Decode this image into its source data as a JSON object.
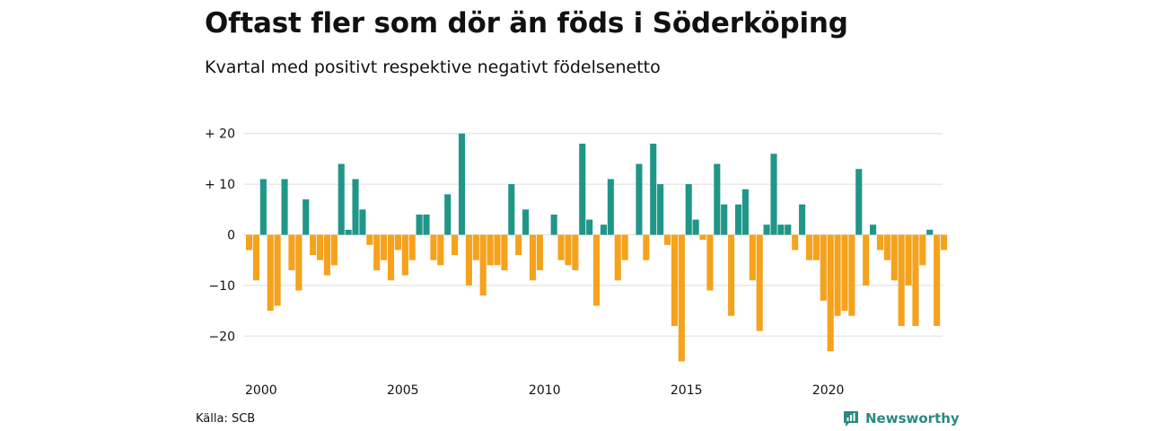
{
  "header": {
    "title": "Oftast fler som dör än föds i Söderköping",
    "subtitle": "Kvartal med positivt respektive negativt födelsenetto"
  },
  "footer": {
    "source": "Källa: SCB",
    "brand": "Newsworthy"
  },
  "colors": {
    "positive": "#1f9688",
    "negative": "#f5a21c",
    "grid": "#dddddd",
    "brand": "#2a8a80"
  },
  "icons": {
    "brand_logo": "newsworthy-logo-icon"
  },
  "chart_data": {
    "type": "bar",
    "title": "Oftast fler som dör än föds i Söderköping",
    "subtitle": "Kvartal med positivt respektive negativt födelsenetto",
    "xlabel": "",
    "ylabel": "",
    "ylim": [
      -25,
      20
    ],
    "grid": true,
    "y_ticks": [
      20,
      10,
      0,
      -10,
      -20
    ],
    "y_tick_labels": [
      "+ 20",
      "+ 10",
      "0",
      "−10",
      "−20"
    ],
    "x_start_year": 2000,
    "x_tick_labels": [
      "2000",
      "2005",
      "2010",
      "2015",
      "2020"
    ],
    "periods_per_year": 4,
    "values": [
      -3,
      -9,
      11,
      -15,
      -14,
      11,
      -7,
      -11,
      7,
      -4,
      -5,
      -8,
      -6,
      14,
      1,
      11,
      5,
      -2,
      -7,
      -5,
      -9,
      -3,
      -8,
      -5,
      4,
      4,
      -5,
      -6,
      8,
      -4,
      20,
      -10,
      -5,
      -12,
      -6,
      -6,
      -7,
      10,
      -4,
      5,
      -9,
      -7,
      0,
      4,
      -5,
      -6,
      -7,
      18,
      3,
      -14,
      2,
      11,
      -9,
      -5,
      0,
      14,
      -5,
      18,
      10,
      -2,
      -18,
      -25,
      10,
      3,
      -1,
      -11,
      14,
      6,
      -16,
      6,
      9,
      -9,
      -19,
      2,
      16,
      2,
      2,
      -3,
      6,
      -5,
      -5,
      -13,
      -23,
      -16,
      -15,
      -16,
      13,
      -10,
      2,
      -3,
      -5,
      -9,
      -18,
      -10,
      -18,
      -6,
      1,
      -18,
      -3
    ]
  }
}
